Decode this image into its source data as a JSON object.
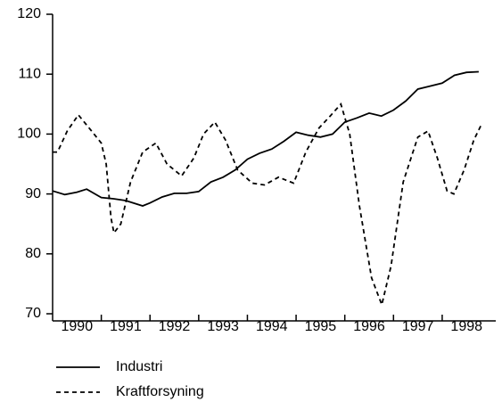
{
  "chart_data": {
    "type": "line",
    "ylim": [
      70,
      120
    ],
    "yticks": [
      70,
      80,
      90,
      100,
      110,
      120
    ],
    "xlim": [
      1990,
      1999.1
    ],
    "xticks": [
      {
        "value": 1990.5,
        "label": "1990"
      },
      {
        "value": 1991.5,
        "label": "1991"
      },
      {
        "value": 1992.5,
        "label": "1992"
      },
      {
        "value": 1993.5,
        "label": "1993"
      },
      {
        "value": 1994.5,
        "label": "1994"
      },
      {
        "value": 1995.5,
        "label": "1995"
      },
      {
        "value": 1996.5,
        "label": "1996"
      },
      {
        "value": 1997.5,
        "label": "1997"
      },
      {
        "value": 1998.5,
        "label": "1998"
      }
    ],
    "xtick_marks": [
      1991,
      1992,
      1993,
      1994,
      1995,
      1996,
      1997,
      1998
    ],
    "series": [
      {
        "name": "Industri",
        "color": "#000000",
        "dash": false,
        "x": [
          1990.0,
          1990.25,
          1990.5,
          1990.7,
          1991.0,
          1991.25,
          1991.5,
          1991.85,
          1992.0,
          1992.25,
          1992.5,
          1992.75,
          1993.0,
          1993.25,
          1993.5,
          1993.75,
          1994.0,
          1994.25,
          1994.5,
          1994.75,
          1995.0,
          1995.25,
          1995.5,
          1995.75,
          1996.0,
          1996.25,
          1996.5,
          1996.75,
          1997.0,
          1997.25,
          1997.5,
          1997.75,
          1998.0,
          1998.25,
          1998.5,
          1998.75
        ],
        "values": [
          90.5,
          89.9,
          90.3,
          90.8,
          89.4,
          89.2,
          88.9,
          88.0,
          88.5,
          89.5,
          90.1,
          90.1,
          90.4,
          92.0,
          92.8,
          94.0,
          95.8,
          96.8,
          97.5,
          98.8,
          100.3,
          99.8,
          99.5,
          100.0,
          102.0,
          102.7,
          103.5,
          103.0,
          104.0,
          105.5,
          107.5,
          108.0,
          108.5,
          109.8,
          110.3,
          110.4
        ]
      },
      {
        "name": "Kraftforsyning",
        "color": "#000000",
        "dash": true,
        "x": [
          1990.0,
          1990.1,
          1990.3,
          1990.53,
          1990.75,
          1991.0,
          1991.1,
          1991.2,
          1991.26,
          1991.4,
          1991.6,
          1991.85,
          1992.12,
          1992.35,
          1992.65,
          1992.9,
          1993.1,
          1993.33,
          1993.55,
          1993.8,
          1994.1,
          1994.35,
          1994.64,
          1994.95,
          1995.2,
          1995.47,
          1995.7,
          1995.92,
          1996.1,
          1996.3,
          1996.55,
          1996.76,
          1996.95,
          1997.2,
          1997.5,
          1997.71,
          1997.9,
          1998.1,
          1998.24,
          1998.45,
          1998.65,
          1998.8
        ],
        "values": [
          97,
          97,
          100.5,
          103.2,
          101,
          98.5,
          95,
          86,
          83.5,
          85,
          92,
          97,
          98.5,
          95,
          93,
          96,
          100,
          102,
          99,
          94,
          91.8,
          91.5,
          92.8,
          91.8,
          97,
          101,
          103,
          105,
          100,
          88,
          76,
          71.5,
          78,
          92,
          99.5,
          100.5,
          96,
          90.5,
          90,
          94,
          99,
          101.5
        ]
      }
    ]
  }
}
